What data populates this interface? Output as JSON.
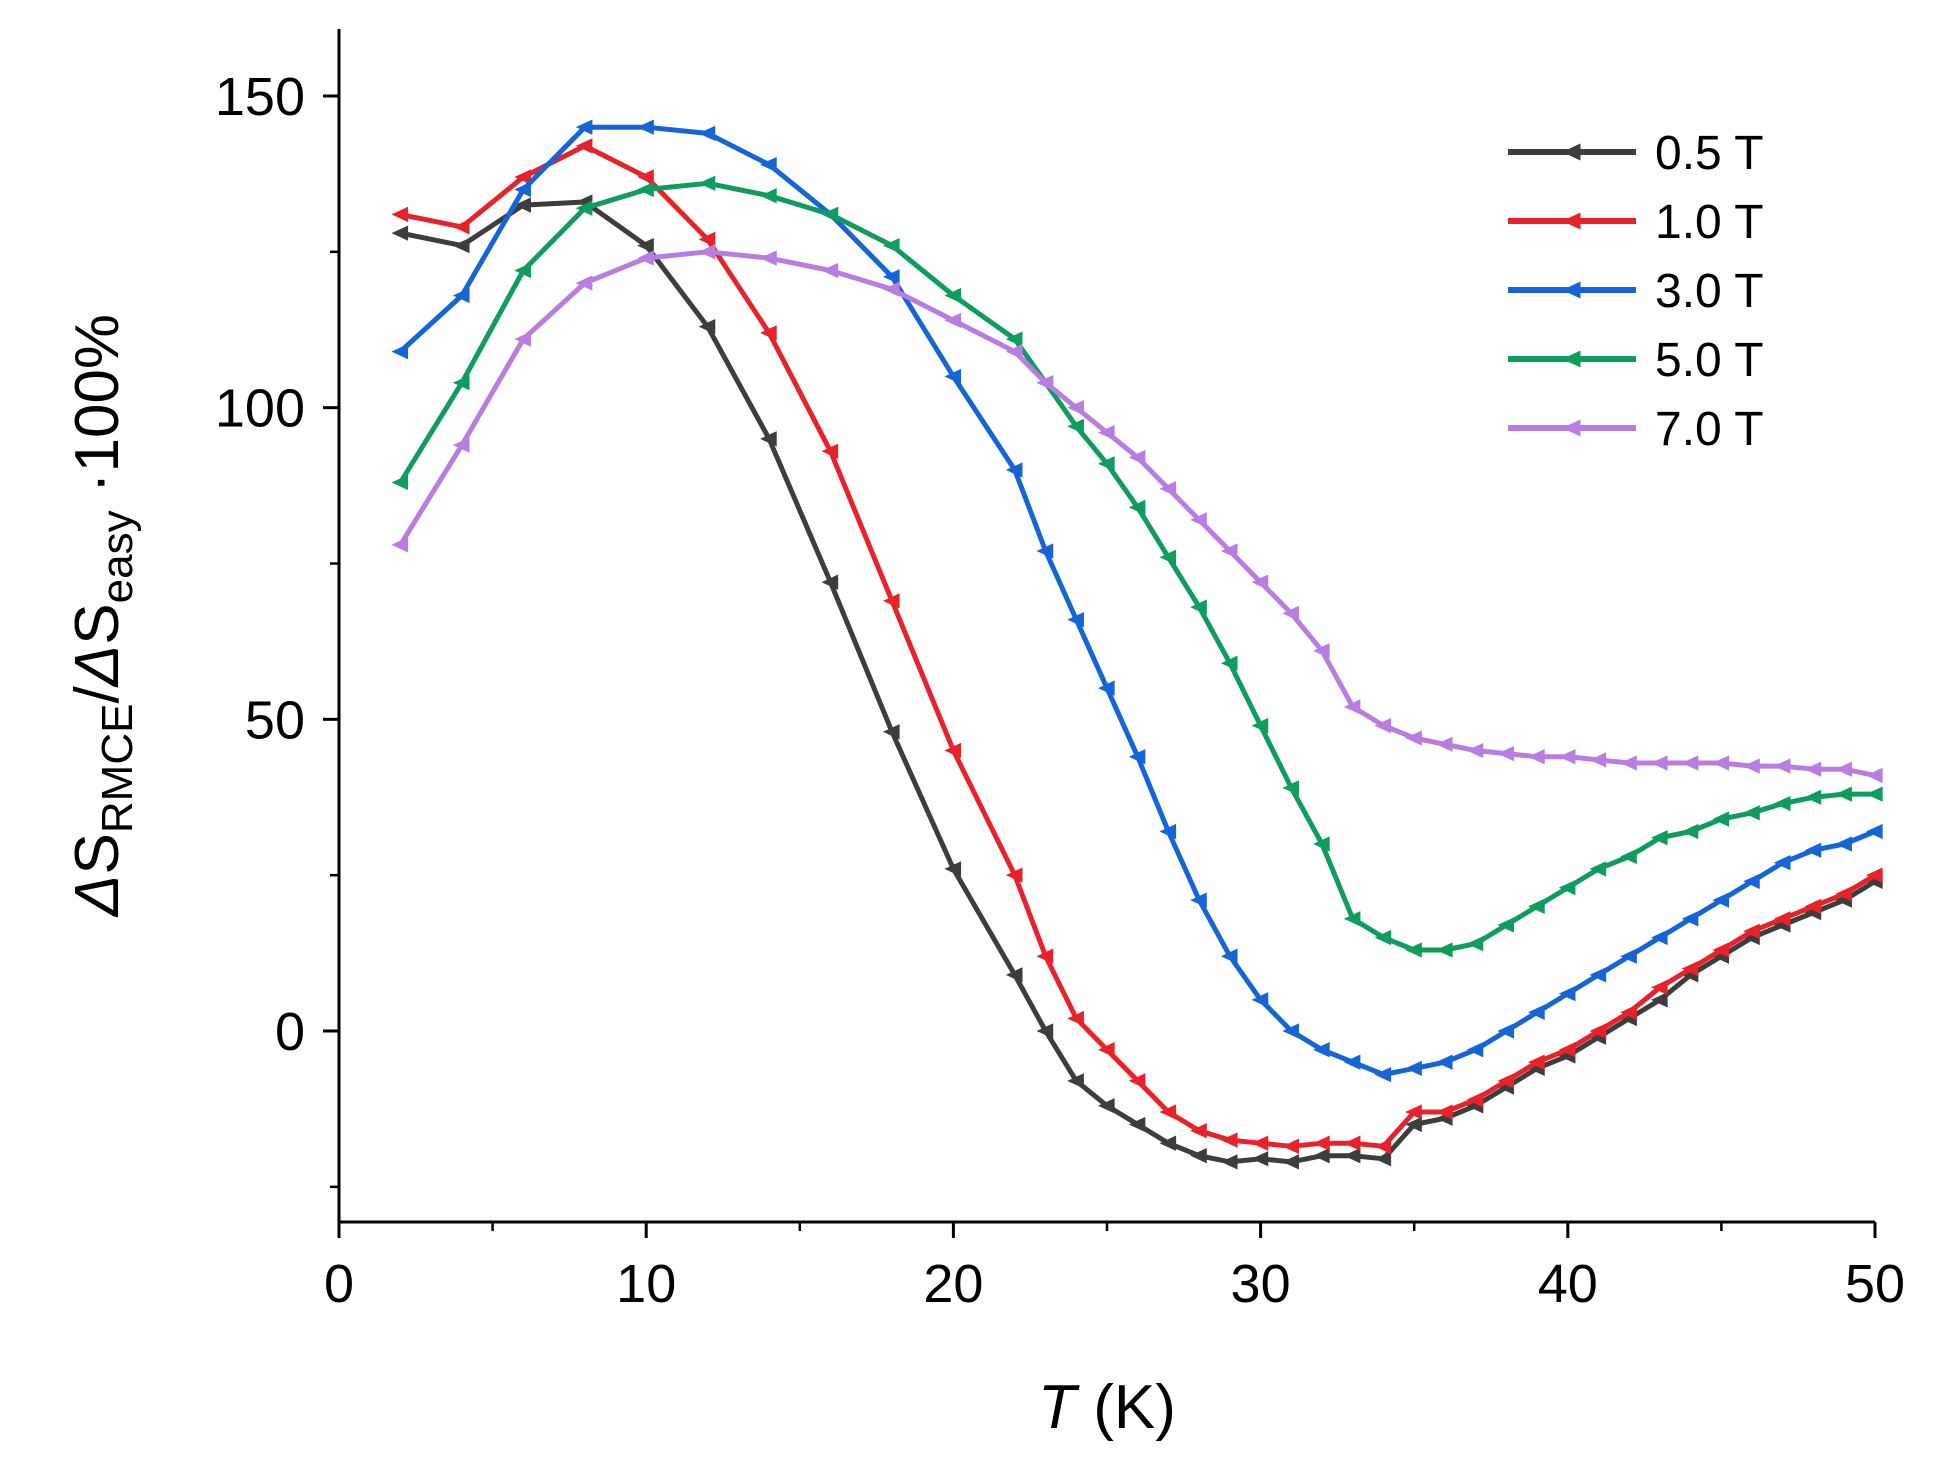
{
  "chart_data": {
    "type": "line",
    "xlabel": {
      "italic": "T",
      "rest": " (K)"
    },
    "ylabel": {
      "d1": "Δ",
      "s1": "S",
      "sub1": "RMCE",
      "slash": "/",
      "d2": "Δ",
      "s2": "S",
      "sub2": "easy",
      "tail": " ·100%"
    },
    "xlim": [
      0,
      50
    ],
    "ylim": [
      -30,
      160
    ],
    "xticks": [
      0,
      10,
      20,
      30,
      40,
      50
    ],
    "yticks": [
      0,
      50,
      100,
      150
    ],
    "grid": false,
    "legend_position": "top-right",
    "marker": "left-pointing triangle",
    "series": [
      {
        "name": "0.5 T",
        "color": "#3d3d3d",
        "points": [
          [
            2,
            128
          ],
          [
            4,
            126
          ],
          [
            6,
            132.5
          ],
          [
            8,
            133
          ],
          [
            10,
            126
          ],
          [
            12,
            113
          ],
          [
            14,
            95
          ],
          [
            16,
            72
          ],
          [
            18,
            48
          ],
          [
            20,
            26
          ],
          [
            22,
            9
          ],
          [
            23,
            0
          ],
          [
            24,
            -8
          ],
          [
            25,
            -12
          ],
          [
            26,
            -15
          ],
          [
            27,
            -18
          ],
          [
            28,
            -20
          ],
          [
            29,
            -21
          ],
          [
            30,
            -20.5
          ],
          [
            31,
            -21
          ],
          [
            32,
            -20
          ],
          [
            33,
            -20
          ],
          [
            34,
            -20.5
          ],
          [
            35,
            -15
          ],
          [
            36,
            -14
          ],
          [
            37,
            -12
          ],
          [
            38,
            -9
          ],
          [
            39,
            -6
          ],
          [
            40,
            -4
          ],
          [
            41,
            -1
          ],
          [
            42,
            2
          ],
          [
            43,
            5
          ],
          [
            44,
            9
          ],
          [
            45,
            12
          ],
          [
            46,
            15
          ],
          [
            47,
            17
          ],
          [
            48,
            19
          ],
          [
            49,
            21
          ],
          [
            50,
            24
          ]
        ]
      },
      {
        "name": "1.0 T",
        "color": "#e8222b",
        "points": [
          [
            2,
            131
          ],
          [
            4,
            129
          ],
          [
            6,
            137
          ],
          [
            8,
            142
          ],
          [
            10,
            137
          ],
          [
            12,
            127
          ],
          [
            14,
            112
          ],
          [
            16,
            93
          ],
          [
            18,
            69
          ],
          [
            20,
            45
          ],
          [
            22,
            25
          ],
          [
            23,
            12
          ],
          [
            24,
            2
          ],
          [
            25,
            -3
          ],
          [
            26,
            -8
          ],
          [
            27,
            -13
          ],
          [
            28,
            -16
          ],
          [
            29,
            -17.5
          ],
          [
            30,
            -18
          ],
          [
            31,
            -18.5
          ],
          [
            32,
            -18
          ],
          [
            33,
            -18
          ],
          [
            34,
            -18.5
          ],
          [
            35,
            -13
          ],
          [
            36,
            -13
          ],
          [
            37,
            -11
          ],
          [
            38,
            -8
          ],
          [
            39,
            -5
          ],
          [
            40,
            -3
          ],
          [
            41,
            0
          ],
          [
            42,
            3
          ],
          [
            43,
            7
          ],
          [
            44,
            10
          ],
          [
            45,
            13
          ],
          [
            46,
            16
          ],
          [
            47,
            18
          ],
          [
            48,
            20
          ],
          [
            49,
            22
          ],
          [
            50,
            25
          ]
        ]
      },
      {
        "name": "3.0 T",
        "color": "#1565d8",
        "points": [
          [
            2,
            109
          ],
          [
            4,
            118
          ],
          [
            6,
            135
          ],
          [
            8,
            145
          ],
          [
            10,
            145
          ],
          [
            12,
            144
          ],
          [
            14,
            139
          ],
          [
            16,
            131
          ],
          [
            18,
            121
          ],
          [
            20,
            105
          ],
          [
            22,
            90
          ],
          [
            23,
            77
          ],
          [
            24,
            66
          ],
          [
            25,
            55
          ],
          [
            26,
            44
          ],
          [
            27,
            32
          ],
          [
            28,
            21
          ],
          [
            29,
            12
          ],
          [
            30,
            5
          ],
          [
            31,
            0
          ],
          [
            32,
            -3
          ],
          [
            33,
            -5
          ],
          [
            34,
            -7
          ],
          [
            35,
            -6
          ],
          [
            36,
            -5
          ],
          [
            37,
            -3
          ],
          [
            38,
            0
          ],
          [
            39,
            3
          ],
          [
            40,
            6
          ],
          [
            41,
            9
          ],
          [
            42,
            12
          ],
          [
            43,
            15
          ],
          [
            44,
            18
          ],
          [
            45,
            21
          ],
          [
            46,
            24
          ],
          [
            47,
            27
          ],
          [
            48,
            29
          ],
          [
            49,
            30
          ],
          [
            50,
            32
          ]
        ]
      },
      {
        "name": "5.0 T",
        "color": "#0e9d5c",
        "points": [
          [
            2,
            88
          ],
          [
            4,
            104
          ],
          [
            6,
            122
          ],
          [
            8,
            132
          ],
          [
            10,
            135
          ],
          [
            12,
            136
          ],
          [
            14,
            134
          ],
          [
            16,
            131
          ],
          [
            18,
            126
          ],
          [
            20,
            118
          ],
          [
            22,
            111
          ],
          [
            23,
            104
          ],
          [
            24,
            97
          ],
          [
            25,
            91
          ],
          [
            26,
            84
          ],
          [
            27,
            76
          ],
          [
            28,
            68
          ],
          [
            29,
            59
          ],
          [
            30,
            49
          ],
          [
            31,
            39
          ],
          [
            32,
            30
          ],
          [
            33,
            18
          ],
          [
            34,
            15
          ],
          [
            35,
            13
          ],
          [
            36,
            13
          ],
          [
            37,
            14
          ],
          [
            38,
            17
          ],
          [
            39,
            20
          ],
          [
            40,
            23
          ],
          [
            41,
            26
          ],
          [
            42,
            28
          ],
          [
            43,
            31
          ],
          [
            44,
            32
          ],
          [
            45,
            34
          ],
          [
            46,
            35
          ],
          [
            47,
            36.5
          ],
          [
            48,
            37.5
          ],
          [
            49,
            38
          ],
          [
            50,
            38
          ]
        ]
      },
      {
        "name": "7.0 T",
        "color": "#b97de2",
        "points": [
          [
            2,
            78
          ],
          [
            4,
            94
          ],
          [
            6,
            111
          ],
          [
            8,
            120
          ],
          [
            10,
            124
          ],
          [
            12,
            125
          ],
          [
            14,
            124
          ],
          [
            16,
            122
          ],
          [
            18,
            119
          ],
          [
            20,
            114
          ],
          [
            22,
            109
          ],
          [
            23,
            104
          ],
          [
            24,
            100
          ],
          [
            25,
            96
          ],
          [
            26,
            92
          ],
          [
            27,
            87
          ],
          [
            28,
            82
          ],
          [
            29,
            77
          ],
          [
            30,
            72
          ],
          [
            31,
            67
          ],
          [
            32,
            61
          ],
          [
            33,
            52
          ],
          [
            34,
            49
          ],
          [
            35,
            47
          ],
          [
            36,
            46
          ],
          [
            37,
            45
          ],
          [
            38,
            44.5
          ],
          [
            39,
            44
          ],
          [
            40,
            44
          ],
          [
            41,
            43.5
          ],
          [
            42,
            43
          ],
          [
            43,
            43
          ],
          [
            44,
            43
          ],
          [
            45,
            43
          ],
          [
            46,
            42.5
          ],
          [
            47,
            42.5
          ],
          [
            48,
            42
          ],
          [
            49,
            42
          ],
          [
            50,
            41
          ]
        ]
      }
    ]
  }
}
